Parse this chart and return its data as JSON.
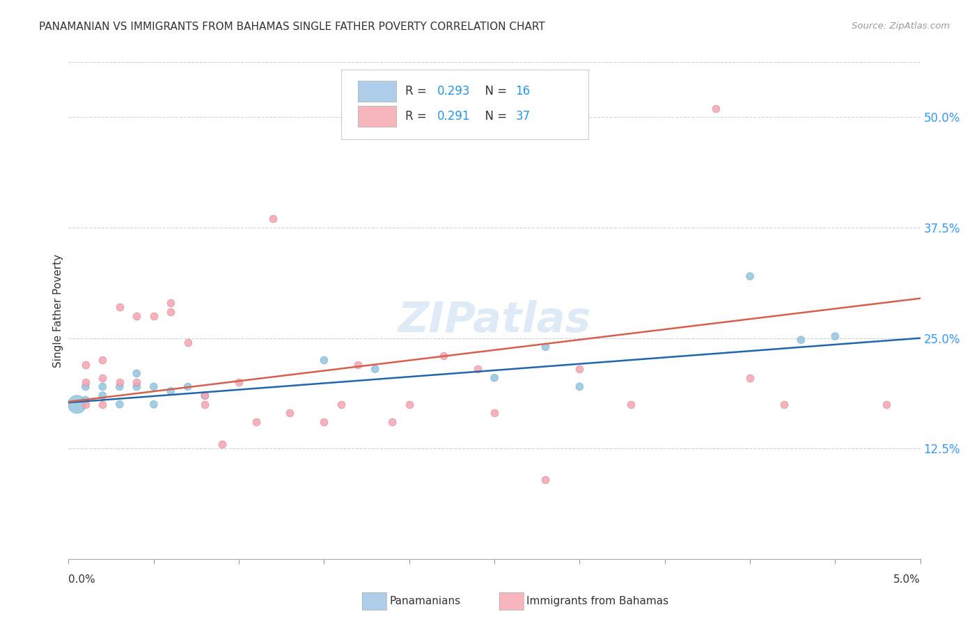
{
  "title": "PANAMANIAN VS IMMIGRANTS FROM BAHAMAS SINGLE FATHER POVERTY CORRELATION CHART",
  "source": "Source: ZipAtlas.com",
  "ylabel": "Single Father Poverty",
  "watermark": "ZIPatlas",
  "xlim": [
    0.0,
    0.05
  ],
  "ylim": [
    0.0,
    0.5625
  ],
  "ytick_values": [
    0.125,
    0.25,
    0.375,
    0.5
  ],
  "ytick_labels": [
    "12.5%",
    "25.0%",
    "37.5%",
    "50.0%"
  ],
  "blue_scatter_color": "#92c5de",
  "pink_scatter_color": "#f4a5b0",
  "blue_line_color": "#2166ac",
  "pink_line_color": "#d6604d",
  "blue_legend_color": "#aecde8",
  "pink_legend_color": "#f7b6bb",
  "panamanian_x": [
    0.0005,
    0.001,
    0.001,
    0.002,
    0.002,
    0.003,
    0.003,
    0.004,
    0.004,
    0.005,
    0.005,
    0.006,
    0.007,
    0.008,
    0.015,
    0.018,
    0.025,
    0.028,
    0.03,
    0.04,
    0.043,
    0.045
  ],
  "panamanian_y": [
    0.175,
    0.18,
    0.195,
    0.185,
    0.195,
    0.175,
    0.195,
    0.195,
    0.21,
    0.175,
    0.195,
    0.19,
    0.195,
    0.185,
    0.225,
    0.215,
    0.205,
    0.24,
    0.195,
    0.32,
    0.248,
    0.252
  ],
  "panamanian_size_large": 350,
  "panamanian_size_small": 60,
  "panamanian_large_idx": 0,
  "bahamas_x": [
    0.001,
    0.001,
    0.001,
    0.002,
    0.002,
    0.002,
    0.003,
    0.003,
    0.004,
    0.004,
    0.005,
    0.006,
    0.006,
    0.007,
    0.008,
    0.008,
    0.009,
    0.01,
    0.011,
    0.012,
    0.013,
    0.015,
    0.016,
    0.017,
    0.019,
    0.02,
    0.022,
    0.024,
    0.025,
    0.028,
    0.03,
    0.033,
    0.038,
    0.04,
    0.042,
    0.048
  ],
  "bahamas_y": [
    0.175,
    0.2,
    0.22,
    0.175,
    0.205,
    0.225,
    0.2,
    0.285,
    0.2,
    0.275,
    0.275,
    0.28,
    0.29,
    0.245,
    0.175,
    0.185,
    0.13,
    0.2,
    0.155,
    0.385,
    0.165,
    0.155,
    0.175,
    0.22,
    0.155,
    0.175,
    0.23,
    0.215,
    0.165,
    0.09,
    0.215,
    0.175,
    0.51,
    0.205,
    0.175,
    0.175
  ],
  "blue_trend_x0": 0.0,
  "blue_trend_x1": 0.05,
  "blue_trend_y0": 0.177,
  "blue_trend_y1": 0.25,
  "pink_trend_x0": 0.0,
  "pink_trend_x1": 0.05,
  "pink_trend_y0": 0.178,
  "pink_trend_y1": 0.295,
  "r_blue": "0.293",
  "n_blue": "16",
  "r_pink": "0.291",
  "n_pink": "37"
}
